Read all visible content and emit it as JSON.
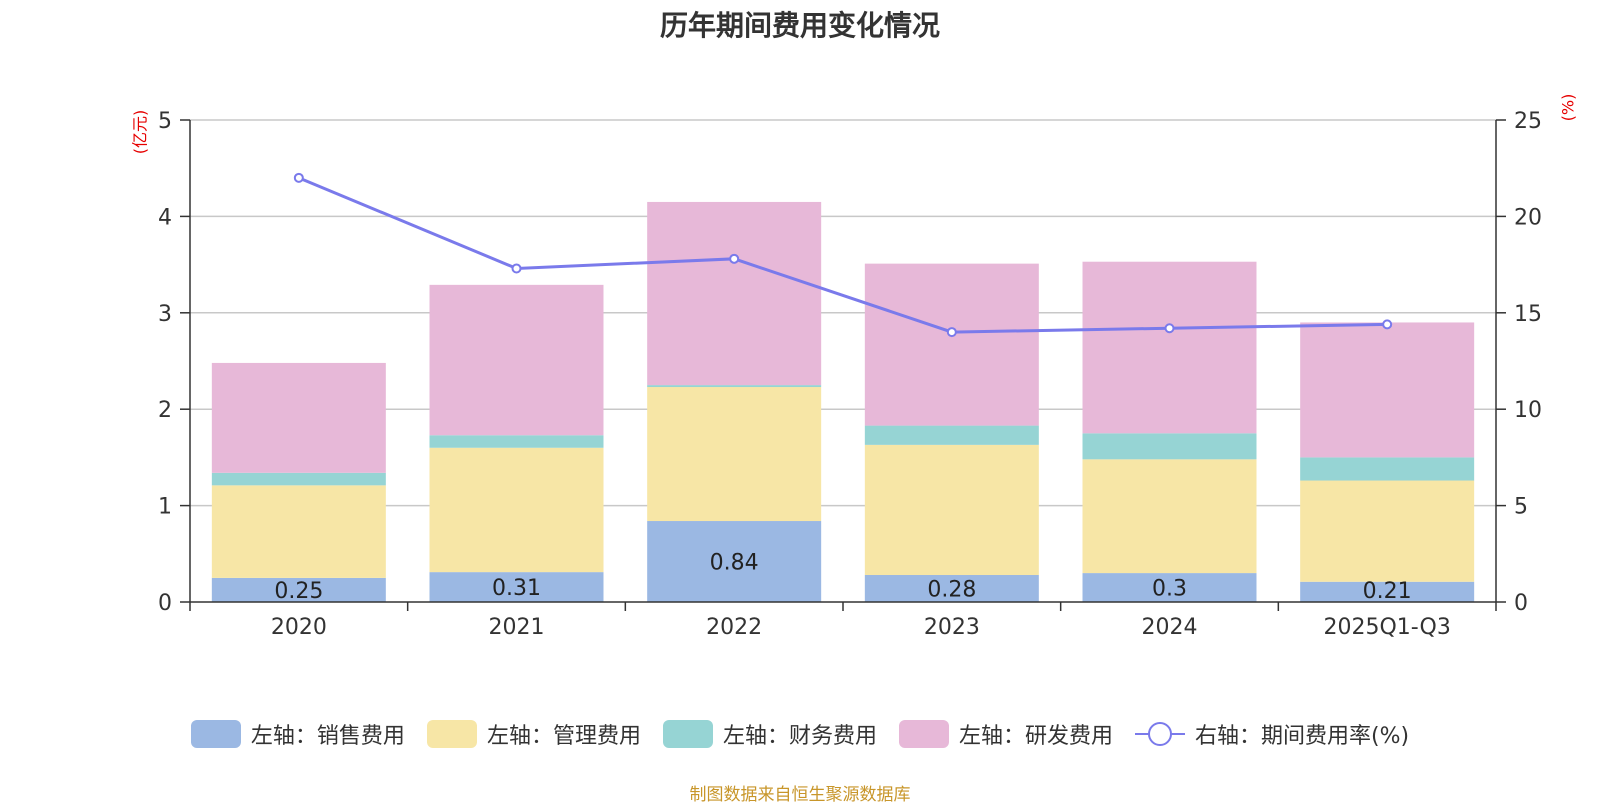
{
  "chart_data": {
    "type": "bar",
    "stacked": true,
    "title": "历年期间费用变化情况",
    "categories": [
      "2020",
      "2021",
      "2022",
      "2023",
      "2024",
      "2025Q1-Q3"
    ],
    "y_left": {
      "unit": "(亿元)",
      "range": [
        0,
        5
      ],
      "ticks": [
        "0",
        "1",
        "2",
        "3",
        "4",
        "5"
      ]
    },
    "y_right": {
      "unit": "(%)",
      "range": [
        0,
        25
      ],
      "ticks": [
        "0",
        "5",
        "10",
        "15",
        "20",
        "25"
      ]
    },
    "series": [
      {
        "name": "左轴：销售费用",
        "axis": "left",
        "color": "#9bb8e3",
        "values": [
          0.25,
          0.31,
          0.84,
          0.28,
          0.3,
          0.21
        ],
        "labels": [
          "0.25",
          "0.31",
          "0.84",
          "0.28",
          "0.3",
          "0.21"
        ]
      },
      {
        "name": "左轴：管理费用",
        "axis": "left",
        "color": "#f7e6a6",
        "values": [
          0.96,
          1.29,
          1.39,
          1.35,
          1.18,
          1.05
        ]
      },
      {
        "name": "左轴：财务费用",
        "axis": "left",
        "color": "#96d4d4",
        "values": [
          0.13,
          0.13,
          0.02,
          0.2,
          0.27,
          0.24
        ]
      },
      {
        "name": "左轴：研发费用",
        "axis": "left",
        "color": "#e7b8d8",
        "values": [
          1.14,
          1.56,
          1.9,
          1.68,
          1.78,
          1.4
        ]
      },
      {
        "name": "右轴：期间费用率(%)",
        "axis": "right",
        "type": "line",
        "color": "#7a7aeb",
        "values": [
          22.0,
          17.3,
          17.8,
          14.0,
          14.2,
          14.4
        ]
      }
    ],
    "legend_position": "bottom",
    "grid": true
  },
  "source": "制图数据来自恒生聚源数据库"
}
